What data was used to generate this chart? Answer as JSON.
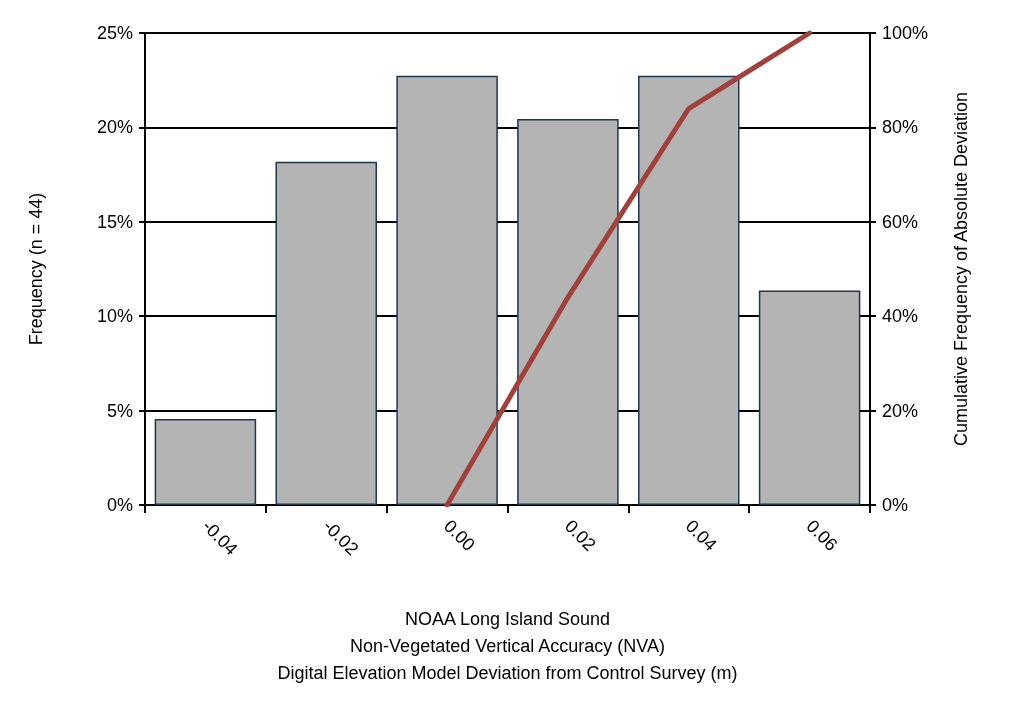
{
  "chart_data": {
    "type": "bar",
    "xlabel": "NOAA Long Island Sound\nNon-Vegetated Vertical Accuracy (NVA)\nDigital Elevation Model Deviation from Control Survey (m)",
    "ylabel": "Frequency (n = 44)",
    "y2label": "Cumulative Frequency of Absolute Deviation",
    "categories": [
      "-0.04",
      "-0.02",
      "0.00",
      "0.02",
      "0.04",
      "0.06"
    ],
    "series": [
      {
        "color": "#b4b4b4",
        "values": [
          4.55,
          18.18,
          22.73,
          20.45,
          22.73,
          11.36
        ]
      },
      {
        "type": "line",
        "axis": "y2",
        "color": "#a0413c",
        "values": [
          null,
          null,
          0,
          44,
          84,
          100
        ]
      }
    ],
    "ylim": [
      0,
      25
    ],
    "yticks": [
      {
        "value": 0,
        "label": "0%"
      },
      {
        "value": 5,
        "label": "5%"
      },
      {
        "value": 10,
        "label": "10%"
      },
      {
        "value": 15,
        "label": "15%"
      },
      {
        "value": 20,
        "label": "20%"
      },
      {
        "value": 25,
        "label": "25%"
      }
    ],
    "y2lim": [
      0,
      100
    ],
    "y2ticks": [
      {
        "value": 0,
        "label": "0%"
      },
      {
        "value": 20,
        "label": "20%"
      },
      {
        "value": 40,
        "label": "40%"
      },
      {
        "value": 60,
        "label": "60%"
      },
      {
        "value": 80,
        "label": "80%"
      },
      {
        "value": 100,
        "label": "100%"
      }
    ],
    "grid": "y",
    "marker": "none",
    "line_style": "solid"
  }
}
